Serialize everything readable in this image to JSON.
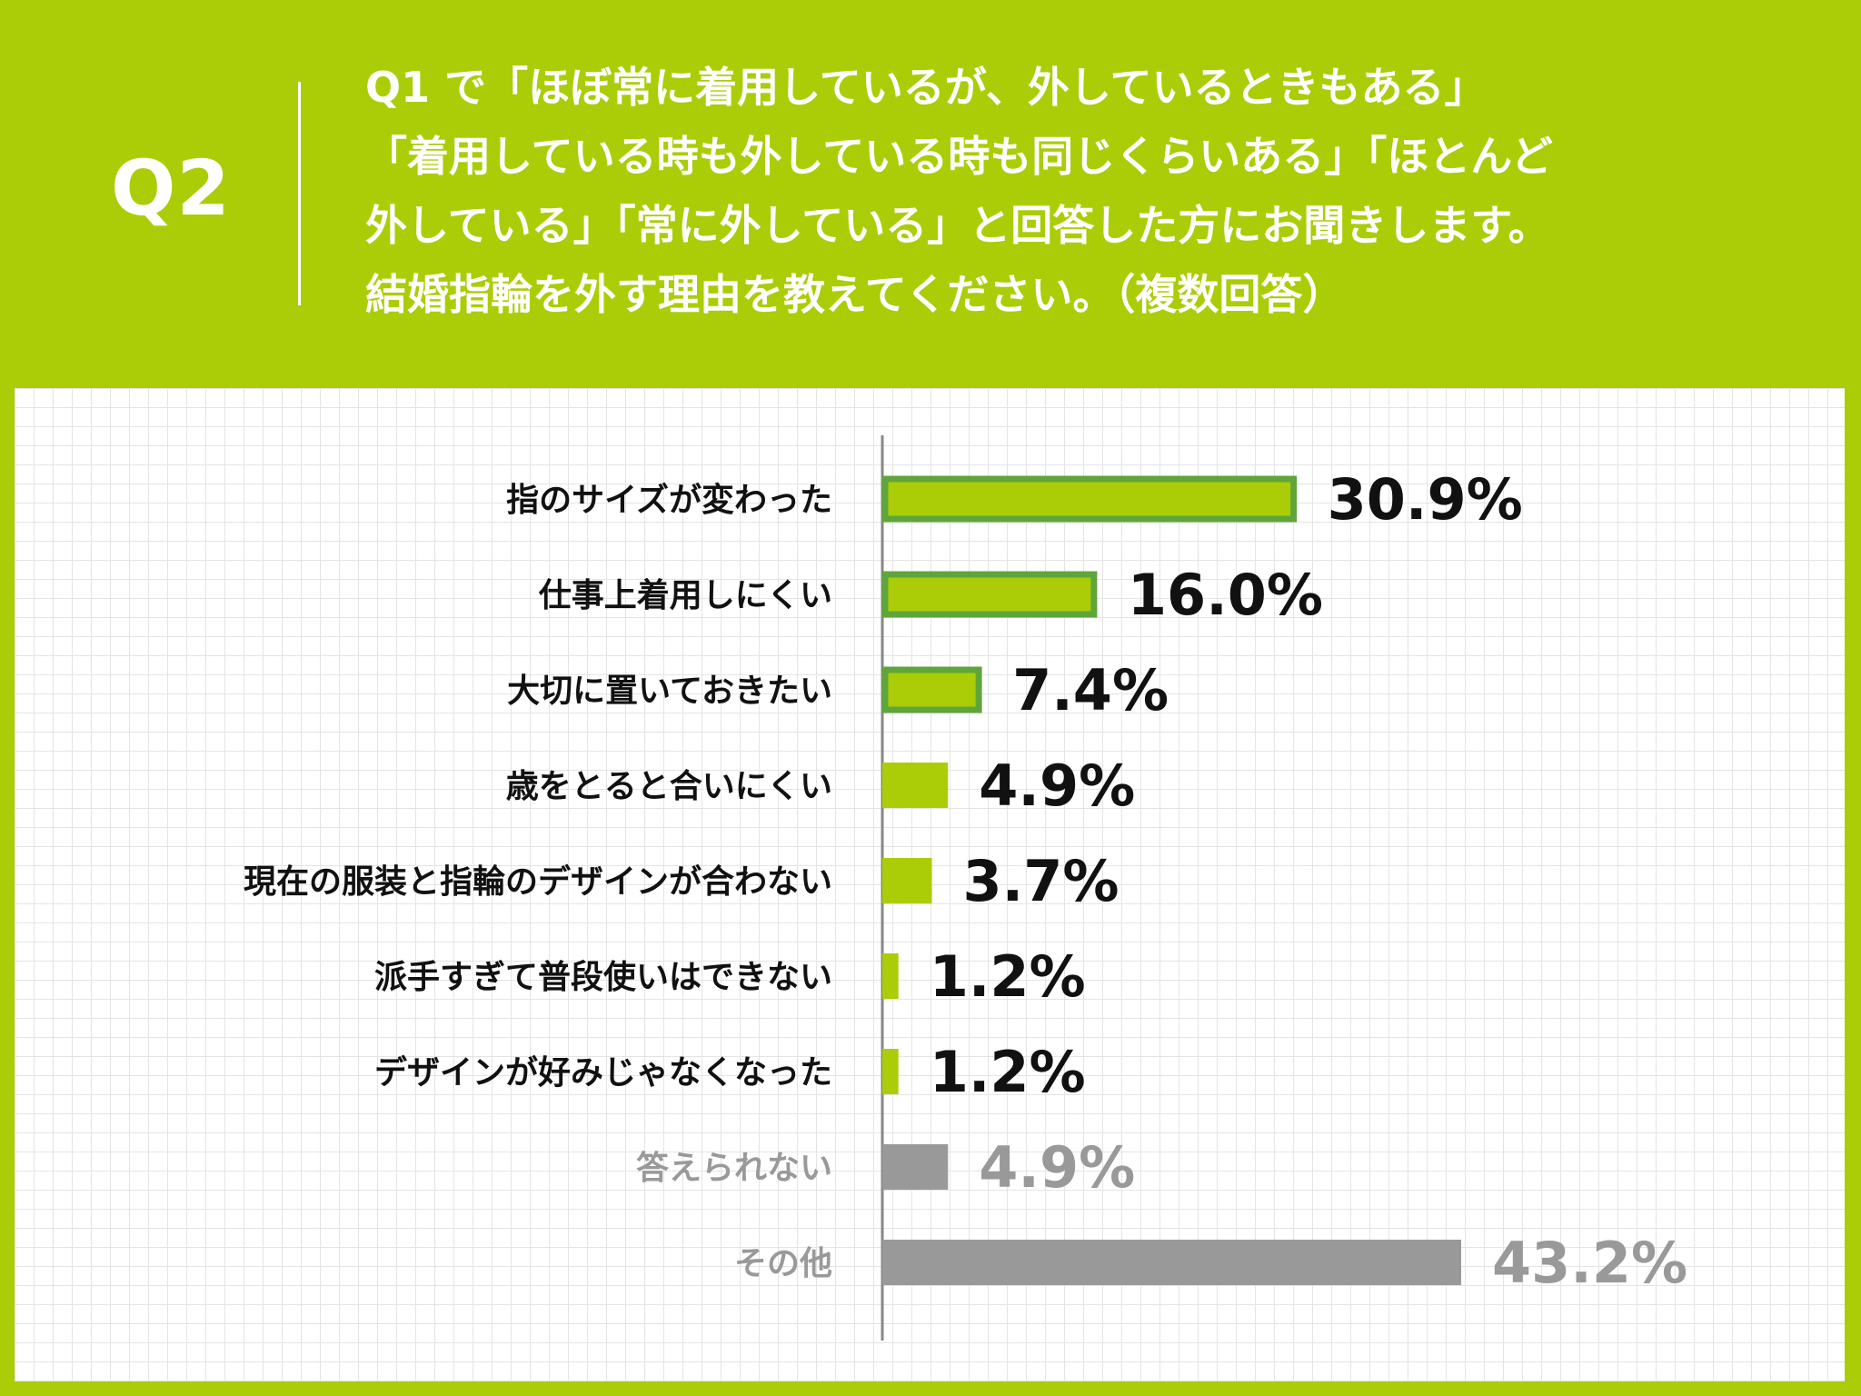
{
  "header": {
    "badge": "Q2",
    "question_lines": [
      "Q1 で「ほぼ常に着用しているが、外しているときもある」",
      "「着用している時も外している時も同じくらいある」「ほとんど",
      "外している」「常に外している」と回答した方にお聞きします。",
      "結婚指輪を外す理由を教えてください。（複数回答）"
    ]
  },
  "colors": {
    "background": "#abcd07",
    "bar_fill": "#abcd07",
    "bar_outline": "#5ea63a",
    "bar_gray": "#999999",
    "text_dark": "#111111",
    "text_gray": "#999999"
  },
  "chart_data": {
    "type": "bar",
    "orientation": "horizontal",
    "categories": [
      "指のサイズが変わった",
      "仕事上着用しにくい",
      "大切に置いておきたい",
      "歳をとると合いにくい",
      "現在の服装と指輪のデザインが合わない",
      "派手すぎて普段使いはできない",
      "デザインが好みじゃなくなった",
      "答えられない",
      "その他"
    ],
    "values": [
      30.9,
      16.0,
      7.4,
      4.9,
      3.7,
      1.2,
      1.2,
      4.9,
      43.2
    ],
    "value_labels": [
      "30.9%",
      "16.0%",
      "7.4%",
      "4.9%",
      "3.7%",
      "1.2%",
      "1.2%",
      "4.9%",
      "43.2%"
    ],
    "styles": [
      "outlined",
      "outlined",
      "outlined",
      "plain",
      "plain",
      "plain",
      "plain",
      "gray",
      "gray"
    ],
    "unit": "%",
    "xlim": [
      0,
      43.2
    ],
    "grid": true,
    "legend": "none"
  }
}
